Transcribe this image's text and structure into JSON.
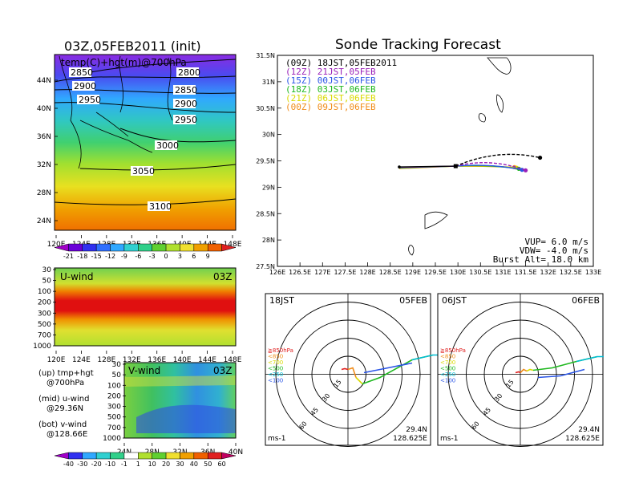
{
  "header": {
    "left_title": "03Z,05FEB2011 (init)",
    "right_title": "Sonde Tracking Forecast"
  },
  "colors": {
    "track_09z": "#000000",
    "track_12z": "#9a1fb8",
    "track_15z": "#2a55e6",
    "track_18z": "#1fb81f",
    "track_21z": "#d9d900",
    "track_00z": "#f08c1a"
  },
  "chart_data": [
    {
      "id": "upper-map",
      "type": "heatmap",
      "label": "temp(C)+hgt(m)@700hPa",
      "x_ticks": [
        "120E",
        "124E",
        "128E",
        "132E",
        "136E",
        "140E",
        "144E",
        "148E"
      ],
      "y_ticks": [
        "24N",
        "28N",
        "32N",
        "36N",
        "40N",
        "44N"
      ],
      "contours": [
        "2800",
        "2850",
        "2850",
        "2900",
        "2900",
        "2950",
        "2950",
        "3000",
        "3050",
        "3100"
      ],
      "colorbar": {
        "labels": [
          "-21",
          "-18",
          "-15",
          "-12",
          "-9",
          "-6",
          "-3",
          "0",
          "3",
          "6",
          "9"
        ],
        "colors": [
          "#a000c8",
          "#6a00d8",
          "#3030f0",
          "#3070ff",
          "#30a8ff",
          "#30d0d0",
          "#30d08a",
          "#60d030",
          "#b0e030",
          "#f0e030",
          "#f0a000",
          "#f06000",
          "#e02020"
        ]
      }
    },
    {
      "id": "u-wind",
      "type": "heatmap",
      "label": "U-wind",
      "time": "03Z",
      "x_ticks": [
        "120E",
        "124E",
        "128E",
        "132E",
        "136E",
        "140E",
        "144E",
        "148E"
      ],
      "y_ticks": [
        "30",
        "50",
        "100",
        "200",
        "300",
        "500",
        "700",
        "1000"
      ]
    },
    {
      "id": "v-wind",
      "type": "heatmap",
      "label": "V-wind",
      "time": "03Z",
      "x_ticks": [
        "24N",
        "28N",
        "32N",
        "36N",
        "40N"
      ],
      "y_ticks": [
        "30",
        "50",
        "100",
        "200",
        "300",
        "500",
        "700",
        "1000"
      ],
      "colorbar": {
        "labels": [
          "-40",
          "-30",
          "-20",
          "-10",
          "-1",
          "1",
          "10",
          "20",
          "30",
          "40",
          "50",
          "60"
        ],
        "colors": [
          "#a000c8",
          "#3030f0",
          "#30a8ff",
          "#30d0d0",
          "#30d08a",
          "#ffffff",
          "#b0e030",
          "#60d030",
          "#f0e030",
          "#f0a000",
          "#f06000",
          "#e02020",
          "#c00060"
        ]
      }
    },
    {
      "id": "tracking",
      "type": "line",
      "title": "Sonde Tracking Forecast",
      "x_ticks": [
        "126E",
        "126.5E",
        "127E",
        "127.5E",
        "128E",
        "128.5E",
        "129E",
        "129.5E",
        "130E",
        "130.5E",
        "131E",
        "131.5E",
        "132E",
        "132.5E",
        "133E"
      ],
      "y_ticks": [
        "27.5N",
        "28N",
        "28.5N",
        "29N",
        "29.5N",
        "30N",
        "30.5N",
        "31N",
        "31.5N"
      ],
      "xlim": [
        126,
        133
      ],
      "ylim": [
        27.5,
        31.5
      ],
      "start": [
        129.95,
        29.4
      ],
      "series": [
        {
          "name": "(09Z) 18JST,05FEB2011",
          "key": "track_09z",
          "dash": true,
          "end": [
            131.82,
            29.56
          ]
        },
        {
          "name": "(12Z) 21JST,05FEB",
          "key": "track_12z",
          "dash": true,
          "end": [
            131.5,
            29.32
          ]
        },
        {
          "name": "(15Z) 00JST,06FEB",
          "key": "track_15z",
          "dash": false,
          "end": [
            131.42,
            29.33
          ]
        },
        {
          "name": "(18Z) 03JST,06FEB",
          "key": "track_18z",
          "dash": false,
          "end": [
            131.35,
            29.35
          ]
        },
        {
          "name": "(21Z) 06JST,06FEB",
          "key": "track_21z",
          "dash": false,
          "end": [
            131.3,
            29.37
          ]
        },
        {
          "name": "(00Z) 09JST,06FEB",
          "key": "track_00z",
          "dash": false,
          "end": [
            131.25,
            29.38
          ]
        }
      ],
      "info": [
        "VUP=  6.0  m/s",
        "VDW= -4.0  m/s",
        "Burst Alt=  18.0  km"
      ]
    },
    {
      "id": "hodograph-1",
      "type": "line",
      "label_left": "18JST",
      "label_right": "05FEB",
      "ring_labels": [
        "15",
        "30",
        "45",
        "60"
      ],
      "levels": [
        "≧850hPa",
        "<850",
        "<700",
        "<500",
        "<250",
        "<100"
      ],
      "level_colors": [
        "#e02020",
        "#f08c1a",
        "#d9d900",
        "#1fb81f",
        "#00bcd4",
        "#2a55e6"
      ],
      "unit": "ms-1",
      "lat": "29.4N",
      "lon": "128.625E"
    },
    {
      "id": "hodograph-2",
      "type": "line",
      "label_left": "06JST",
      "label_right": "06FEB",
      "ring_labels": [
        "15",
        "30",
        "45",
        "60"
      ],
      "levels": [
        "≧850hPa",
        "<850",
        "<700",
        "<500",
        "<250",
        "<100"
      ],
      "level_colors": [
        "#e02020",
        "#f08c1a",
        "#d9d900",
        "#1fb81f",
        "#00bcd4",
        "#2a55e6"
      ],
      "unit": "ms-1",
      "lat": "29.4N",
      "lon": "128.625E"
    }
  ],
  "side_legend": {
    "up": "(up) tmp+hgt",
    "up2": "@700hPa",
    "mid": "(mid) u-wind",
    "mid2": "@29.36N",
    "bot": "(bot) v-wind",
    "bot2": "@128.66E"
  }
}
